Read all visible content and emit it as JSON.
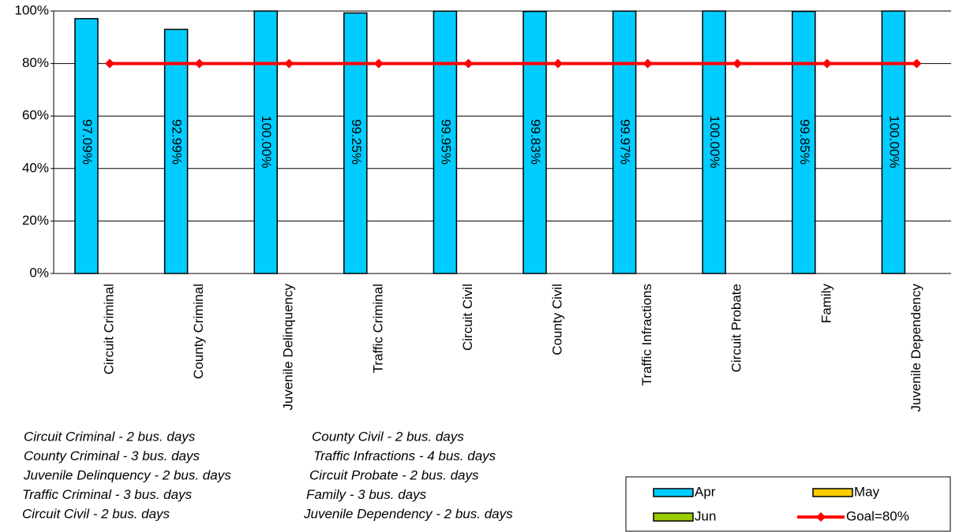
{
  "chart_data": {
    "type": "bar",
    "categories": [
      "Circuit Criminal",
      "County Criminal",
      "Juvenile Delinquency",
      "Traffic Criminal",
      "Circuit Civil",
      "County Civil",
      "Traffic Infractions",
      "Circuit Probate",
      "Family",
      "Juvenile Dependency"
    ],
    "series": [
      {
        "name": "Apr",
        "color": "#00ccff",
        "values": [
          97.09,
          92.99,
          100,
          99.25,
          99.95,
          99.83,
          99.97,
          100,
          99.85,
          100
        ],
        "value_labels": [
          "97.09%",
          "92.99%",
          "100.00%",
          "99.25%",
          "99.95%",
          "99.83%",
          "99.97%",
          "100.00%",
          "99.85%",
          "100.00%"
        ]
      },
      {
        "name": "May",
        "color": "#ffcc00",
        "values": [
          null,
          null,
          null,
          null,
          null,
          null,
          null,
          null,
          null,
          null
        ]
      },
      {
        "name": "Jun",
        "color": "#99cc00",
        "values": [
          null,
          null,
          null,
          null,
          null,
          null,
          null,
          null,
          null,
          null
        ]
      },
      {
        "name": "Goal=80%",
        "type": "line",
        "color": "#ff0000",
        "values": [
          80,
          80,
          80,
          80,
          80,
          80,
          80,
          80,
          80,
          80
        ]
      }
    ],
    "ylim": [
      0,
      100
    ],
    "yticks": [
      {
        "value": 0,
        "label": "0%"
      },
      {
        "value": 20,
        "label": "20%"
      },
      {
        "value": 40,
        "label": "40%"
      },
      {
        "value": 60,
        "label": "60%"
      },
      {
        "value": 80,
        "label": "80%"
      },
      {
        "value": 100,
        "label": "100%"
      }
    ],
    "grid": true,
    "legend": "bottom-right",
    "notes": [
      [
        "Circuit Criminal - 2 bus. days",
        "County Criminal - 3 bus. days",
        "Juvenile Delinquency - 2 bus. days",
        "Traffic Criminal - 3 bus. days",
        "Circuit Civil - 2 bus. days"
      ],
      [
        "County Civil - 2 bus. days",
        "Traffic Infractions - 4 bus. days",
        "Circuit Probate - 2 bus. days",
        "Family - 3 bus. days",
        "Juvenile Dependency - 2 bus. days"
      ]
    ]
  }
}
